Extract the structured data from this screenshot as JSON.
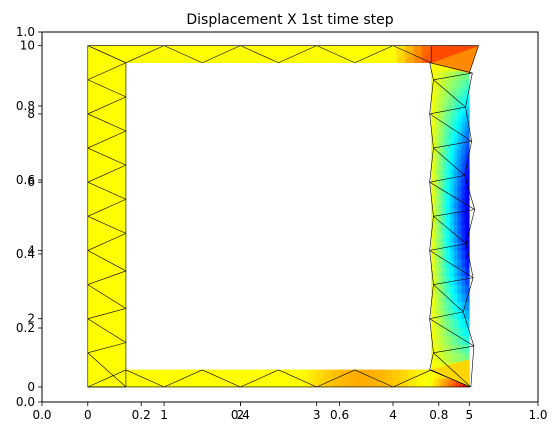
{
  "chart_data": {
    "type": "mesh-contour",
    "title": "Displacement X 1st time step",
    "axes_frame": {
      "xlim": [
        0,
        1
      ],
      "ylim": [
        0,
        1
      ],
      "xticks": [
        "0.0",
        "0.2",
        "0.4",
        "0.6",
        "0.8",
        "1.0"
      ],
      "yticks": [
        "0.0",
        "0.2",
        "0.4",
        "0.6",
        "0.8",
        "1.0"
      ]
    },
    "axes_data": {
      "xlim": [
        -0.6,
        5.9
      ],
      "ylim": [
        -0.44,
        10.4
      ],
      "xticks": [
        "0",
        "1",
        "2",
        "3",
        "4",
        "5"
      ],
      "yticks": [
        "0",
        "2",
        "4",
        "6",
        "8",
        "10"
      ]
    },
    "colormap": "jet",
    "colormap_stops": [
      "#00007f",
      "#0000ff",
      "#007fff",
      "#00ffff",
      "#7fff7f",
      "#ffff00",
      "#ff7f00",
      "#ff0000",
      "#7f0000"
    ],
    "mesh": {
      "left_wall": {
        "x": [
          0,
          0.5
        ],
        "y": [
          0,
          10
        ]
      },
      "top_wall": {
        "x": [
          0,
          5
        ],
        "y": [
          9.5,
          10
        ]
      },
      "bottom_wall": {
        "x": [
          0,
          5
        ],
        "y": [
          0,
          0.5
        ]
      },
      "right_wall": {
        "x": [
          4.5,
          5
        ],
        "y": [
          0,
          10
        ]
      },
      "tip_corner": [
        5.12,
        10.0
      ],
      "line_color": "#000000"
    }
  }
}
